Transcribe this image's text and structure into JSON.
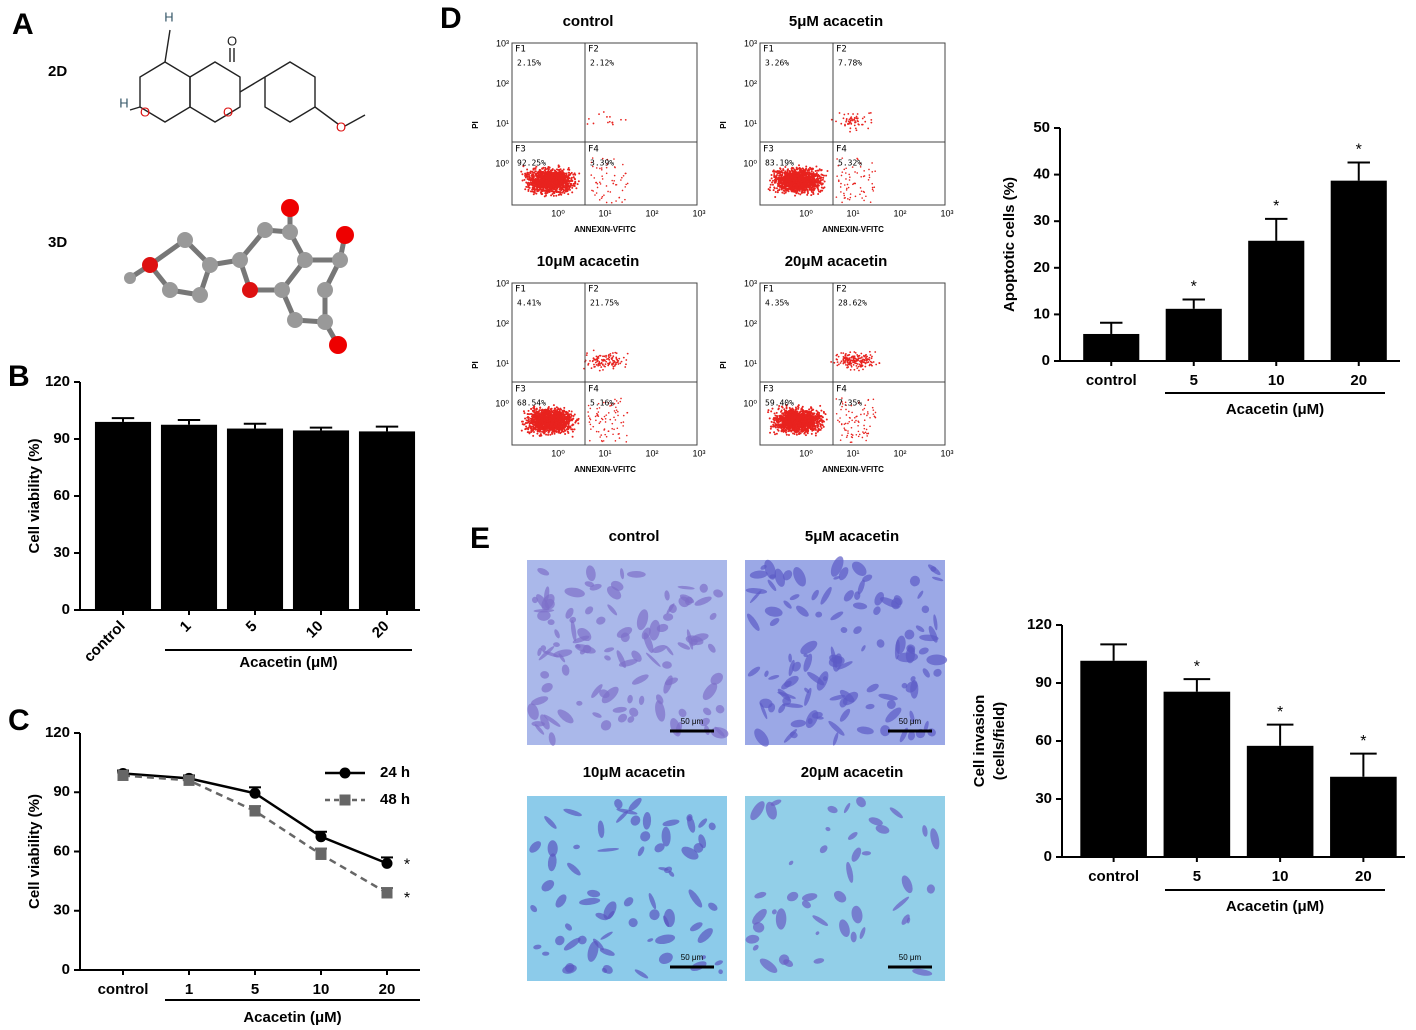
{
  "panel_labels": [
    "A",
    "B",
    "C",
    "D",
    "E"
  ],
  "structure": {
    "labels": [
      "2D",
      "3D"
    ],
    "atoms_2d": [
      "H",
      "O",
      "H",
      "O",
      "O",
      "O"
    ]
  },
  "flow_cytometry": [
    {
      "title": "control",
      "quadrants": [
        "F1",
        "F2",
        "F3",
        "F4"
      ],
      "percentages": [
        "2.15%",
        "2.12%",
        "92.25%",
        "3.39%"
      ],
      "xlabel": "ANNEXIN-VFITC",
      "ylabel": "PI",
      "ticks": [
        "10⁰",
        "10¹",
        "10²",
        "10³"
      ]
    },
    {
      "title": "5μM   acacetin",
      "quadrants": [
        "F1",
        "F2",
        "F3",
        "F4"
      ],
      "percentages": [
        "3.26%",
        "7.78%",
        "83.19%",
        "5.32%"
      ],
      "xlabel": "ANNEXIN-VFITC",
      "ylabel": "PI",
      "ticks": [
        "10⁰",
        "10¹",
        "10²",
        "10³"
      ]
    },
    {
      "title": "10μM   acacetin",
      "quadrants": [
        "F1",
        "F2",
        "F3",
        "F4"
      ],
      "percentages": [
        "4.41%",
        "21.75%",
        "68.54%",
        "5.16%"
      ],
      "xlabel": "ANNEXIN-VFITC",
      "ylabel": "PI",
      "ticks": [
        "10⁰",
        "10¹",
        "10²",
        "10³"
      ]
    },
    {
      "title": "20μM   acacetin",
      "quadrants": [
        "F1",
        "F2",
        "F3",
        "F4"
      ],
      "percentages": [
        "4.35%",
        "28.62%",
        "59.40%",
        "7.35%"
      ],
      "xlabel": "ANNEXIN-VFITC",
      "ylabel": "PI",
      "ticks": [
        "10⁰",
        "10¹",
        "10²",
        "10³"
      ]
    }
  ],
  "micrographs": [
    {
      "title": "control",
      "scale": "50 μm"
    },
    {
      "title": "5μM   acacetin",
      "scale": "50 μm"
    },
    {
      "title": "10μM   acacetin",
      "scale": "50 μm"
    },
    {
      "title": "20μM   acacetin",
      "scale": "50 μm"
    }
  ],
  "chart_data": [
    {
      "type": "bar",
      "ylabel": [
        "Cell viability (%)"
      ],
      "xlabel": "Acacetin (μM)",
      "categories": [
        "control",
        "1",
        "5",
        "10",
        "20"
      ],
      "values": [
        99,
        97.5,
        95.5,
        94.5,
        94
      ],
      "errors": [
        2,
        2.5,
        2.5,
        1.5,
        2.5
      ],
      "color": "#000000",
      "ylim": [
        0,
        120
      ],
      "yticks": [
        0,
        30,
        60,
        90,
        120
      ],
      "rotate_labels": true
    },
    {
      "type": "line",
      "ylabel": [
        "Cell viability (%)"
      ],
      "xlabel": "Acacetin (μM)",
      "categories": [
        "control",
        "1",
        "5",
        "10",
        "20"
      ],
      "series": [
        {
          "name": "24 h",
          "color": "#000000",
          "marker": "circle",
          "dashed": false,
          "values": [
            99.5,
            97,
            89.5,
            67.5,
            54
          ],
          "errors": [
            1.5,
            1.5,
            3,
            2.5,
            3
          ],
          "annotation": "*"
        },
        {
          "name": "48 h",
          "color": "#666666",
          "marker": "square",
          "dashed": true,
          "values": [
            98.5,
            96,
            80.5,
            58.5,
            39
          ],
          "errors": [
            1.5,
            1.5,
            2.5,
            3,
            2.5
          ],
          "annotation": "*"
        }
      ],
      "ylim": [
        0,
        120
      ],
      "yticks": [
        0,
        30,
        60,
        90,
        120
      ],
      "legend": "upper-right"
    },
    {
      "type": "bar",
      "ylabel": [
        "Apoptotic cells (%)"
      ],
      "xlabel": "Acacetin (μM)",
      "categories": [
        "control",
        "5",
        "10",
        "20"
      ],
      "values": [
        5.8,
        11.2,
        25.8,
        38.7
      ],
      "errors": [
        2.4,
        2,
        4.7,
        3.9
      ],
      "annotations": [
        null,
        "*",
        "*",
        "*"
      ],
      "color": "#000000",
      "ylim": [
        0,
        50
      ],
      "yticks": [
        0,
        10,
        20,
        30,
        40,
        50
      ],
      "rotate_labels": false
    },
    {
      "type": "bar",
      "ylabel": [
        "Cell invasion",
        "(cells/field)"
      ],
      "xlabel": "Acacetin (μM)",
      "categories": [
        "control",
        "5",
        "10",
        "20"
      ],
      "values": [
        101.5,
        85.5,
        57.5,
        41.5
      ],
      "errors": [
        8.5,
        6.5,
        11,
        12
      ],
      "annotations": [
        null,
        "*",
        "*",
        "*"
      ],
      "color": "#000000",
      "ylim": [
        0,
        120
      ],
      "yticks": [
        0,
        30,
        60,
        90,
        120
      ],
      "rotate_labels": false
    }
  ]
}
